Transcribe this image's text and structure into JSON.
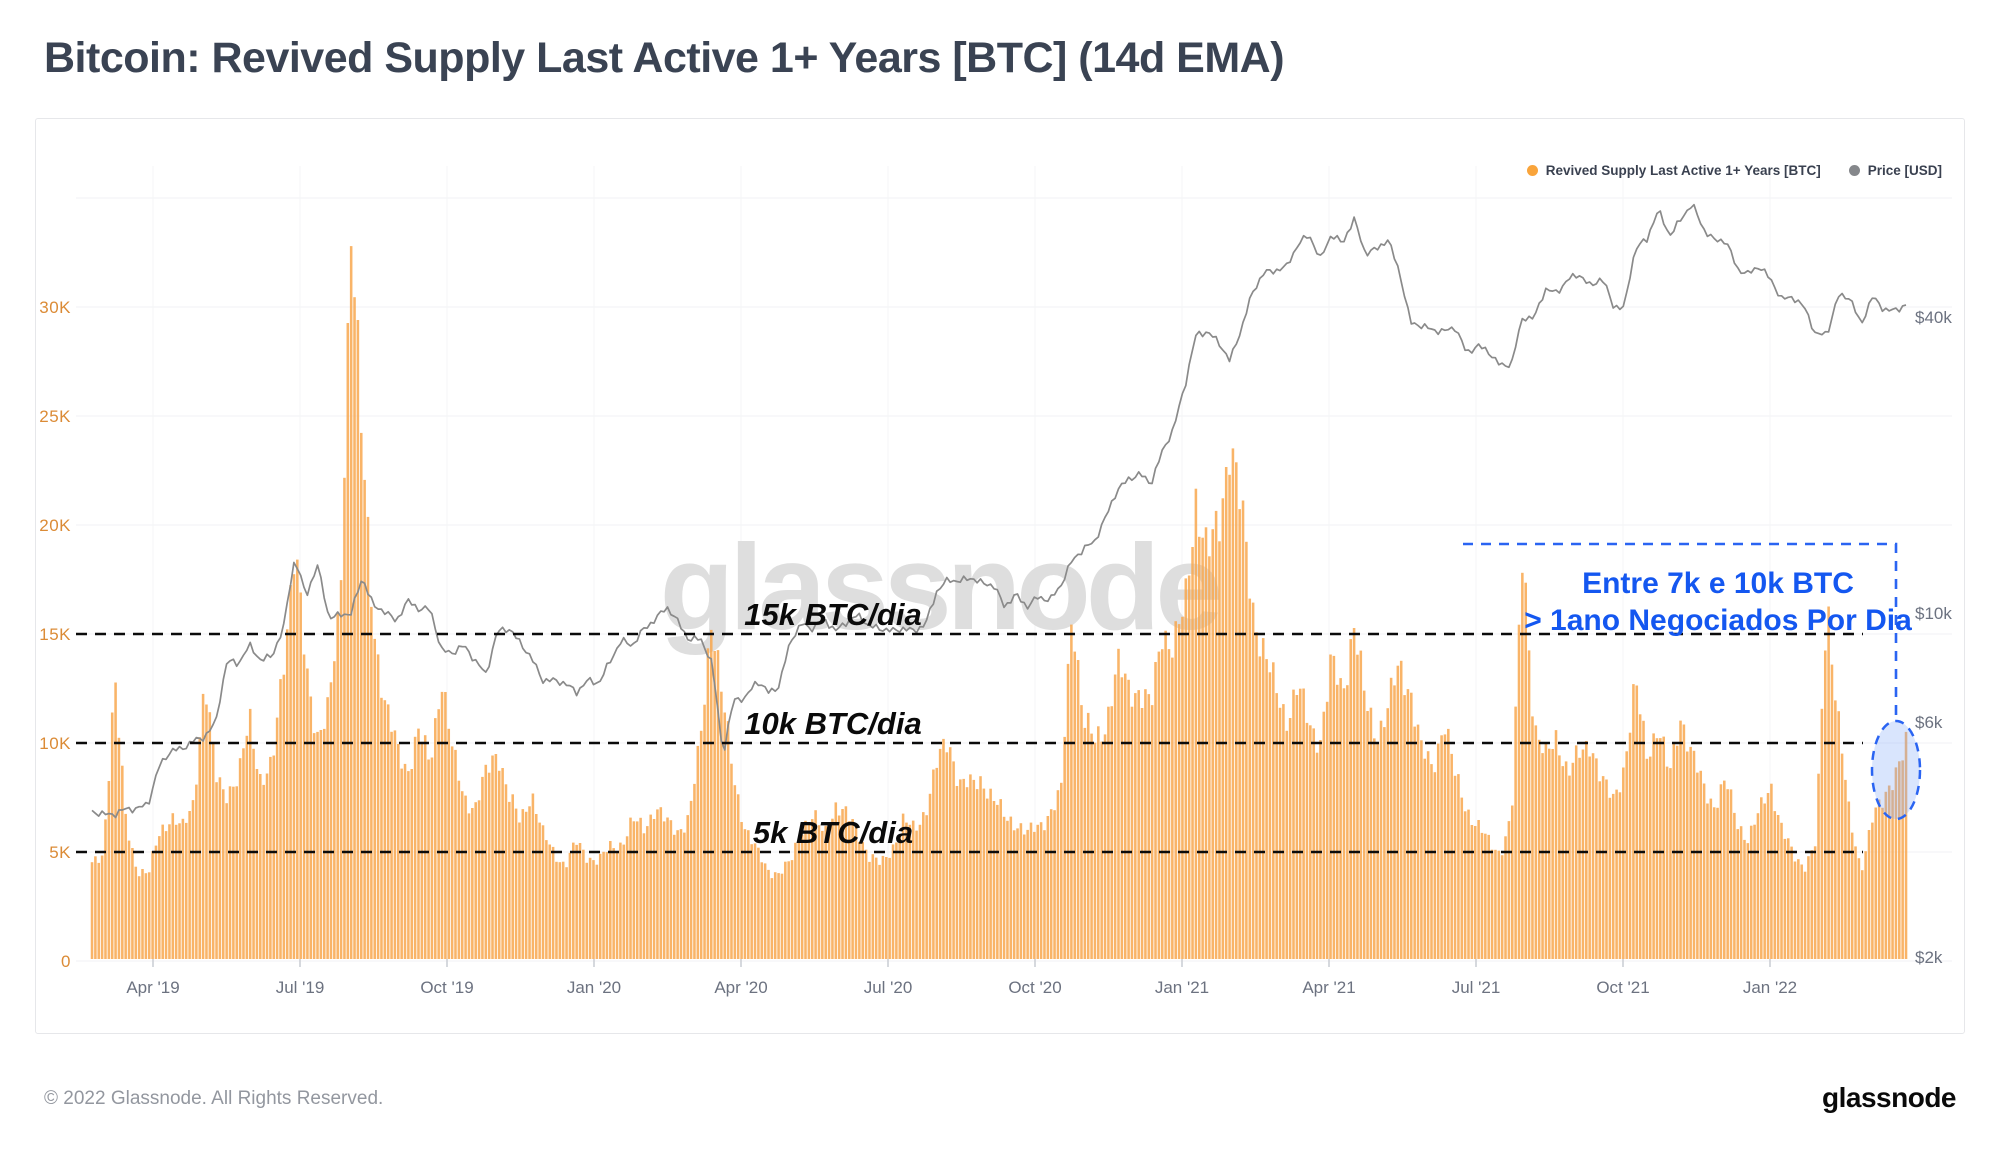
{
  "page": {
    "title": "Bitcoin: Revived Supply Last Active 1+ Years [BTC] (14d EMA)",
    "footer_copyright": "© 2022 Glassnode. All Rights Reserved.",
    "brand_logo": "glassnode",
    "watermark": "glassnode"
  },
  "legend": [
    {
      "label": "Revived Supply Last Active 1+ Years [BTC]",
      "color": "#F9A43B"
    },
    {
      "label": "Price [USD]",
      "color": "#85878B"
    }
  ],
  "axes": {
    "left_ticks": [
      {
        "label": "0",
        "v": 0
      },
      {
        "label": "5K",
        "v": 5
      },
      {
        "label": "10K",
        "v": 10
      },
      {
        "label": "15K",
        "v": 15
      },
      {
        "label": "20K",
        "v": 20
      },
      {
        "label": "25K",
        "v": 25
      },
      {
        "label": "30K",
        "v": 30
      }
    ],
    "right_ticks": [
      {
        "label": "$2k",
        "v": 2
      },
      {
        "label": "$6k",
        "v": 6
      },
      {
        "label": "$10k",
        "v": 10
      },
      {
        "label": "$40k",
        "v": 40
      }
    ],
    "x_ticks": [
      "Apr '19",
      "Jul '19",
      "Oct '19",
      "Jan '20",
      "Apr '20",
      "Jul '20",
      "Oct '20",
      "Jan '21",
      "Apr '21",
      "Jul '21",
      "Oct '21",
      "Jan '22"
    ]
  },
  "annotations": {
    "thresholds": [
      {
        "label": "15k BTC/dia",
        "v": 15
      },
      {
        "label": "10k BTC/dia",
        "v": 10
      },
      {
        "label": "5k BTC/dia",
        "v": 5
      }
    ],
    "blue_note_line1": "Entre 7k e 10k BTC",
    "blue_note_line2": "> 1ano Negociados Por Dia",
    "blue_text_color": "#1457F0",
    "blue_line_color": "#2A64F2",
    "highlight_fill": "rgba(130,168,250,0.30)"
  },
  "chart_data": {
    "type": "bar+line",
    "title": "Bitcoin: Revived Supply Last Active 1+ Years [BTC] (14d EMA)",
    "x_start": "2019-02-20",
    "x_end": "2022-03-25",
    "sampling": "weekly",
    "left_axis": {
      "unit": "BTC",
      "scale": "linear",
      "range_k": [
        0,
        35
      ]
    },
    "right_axis": {
      "unit": "USD",
      "scale": "log",
      "range_usd": [
        2000,
        70000
      ]
    },
    "grid": true,
    "legend_position": "top-right",
    "series": [
      {
        "name": "Revived Supply Last Active 1+ Years [BTC]",
        "type": "bar",
        "color": "#F8A74D",
        "values_k_btc": [
          4.4,
          5.0,
          12.8,
          6.5,
          4.2,
          3.9,
          6.0,
          6.6,
          6.0,
          7.4,
          12.7,
          8.5,
          7.8,
          8.2,
          11.3,
          8.2,
          8.8,
          14.0,
          19.0,
          13.2,
          10.5,
          11.5,
          16.0,
          34.5,
          23.0,
          15.5,
          11.8,
          9.8,
          8.8,
          10.5,
          9.0,
          13.2,
          9.5,
          7.6,
          7.0,
          8.6,
          9.8,
          7.5,
          6.4,
          7.8,
          5.8,
          5.0,
          4.4,
          5.4,
          4.8,
          4.6,
          5.2,
          5.4,
          6.4,
          6.1,
          7.1,
          6.3,
          6.0,
          6.6,
          10.0,
          16.2,
          11.8,
          8.3,
          6.1,
          5.0,
          4.2,
          4.0,
          4.5,
          6.2,
          6.6,
          5.8,
          7.2,
          6.6,
          6.0,
          4.8,
          4.4,
          5.2,
          6.4,
          6.0,
          7.0,
          9.0,
          10.2,
          8.2,
          8.0,
          8.4,
          7.4,
          6.6,
          6.4,
          5.8,
          6.2,
          6.8,
          7.6,
          16.5,
          11.0,
          10.0,
          11.0,
          13.5,
          12.5,
          12.5,
          11.5,
          15.3,
          14.5,
          16.0,
          21.6,
          18.5,
          19.8,
          24.3,
          20.5,
          16.3,
          14.3,
          12.4,
          11.2,
          12.6,
          10.8,
          10.2,
          13.6,
          12.3,
          15.6,
          11.8,
          10.4,
          11.6,
          13.4,
          12.6,
          9.6,
          8.8,
          11.2,
          8.4,
          7.0,
          6.2,
          5.4,
          5.0,
          6.6,
          19.2,
          10.8,
          9.2,
          10.4,
          8.6,
          9.4,
          10.2,
          8.2,
          7.4,
          9.0,
          12.6,
          9.6,
          10.8,
          8.4,
          11.4,
          9.4,
          8.0,
          7.2,
          8.2,
          6.4,
          5.6,
          6.8,
          8.2,
          6.0,
          4.8,
          4.4,
          5.4,
          16.5,
          11.3,
          6.4,
          4.2,
          6.6,
          7.2,
          8.8,
          9.9
        ]
      },
      {
        "name": "Price [USD]",
        "type": "line",
        "color": "#8A8A8A",
        "values_k_usd": [
          3.95,
          3.9,
          3.9,
          4.0,
          4.0,
          4.1,
          4.9,
          5.25,
          5.3,
          5.5,
          5.6,
          6.0,
          8.0,
          7.9,
          8.6,
          8.0,
          8.2,
          9.3,
          12.9,
          10.8,
          12.5,
          9.8,
          9.9,
          10.0,
          11.8,
          10.3,
          10.1,
          9.6,
          10.6,
          10.2,
          10.2,
          8.4,
          8.3,
          8.6,
          8.0,
          7.5,
          9.2,
          9.3,
          8.7,
          8.1,
          7.3,
          7.3,
          7.2,
          6.9,
          7.3,
          7.2,
          8.0,
          8.8,
          8.6,
          9.3,
          9.7,
          10.3,
          9.6,
          8.8,
          8.9,
          7.9,
          5.1,
          6.7,
          6.7,
          7.3,
          6.9,
          7.1,
          8.8,
          9.5,
          9.3,
          9.7,
          9.2,
          9.6,
          9.9,
          9.4,
          9.3,
          9.2,
          9.3,
          9.2,
          9.5,
          11.1,
          11.7,
          11.6,
          11.8,
          11.5,
          11.4,
          10.3,
          10.9,
          10.3,
          10.8,
          10.6,
          11.4,
          12.8,
          13.5,
          14.0,
          15.7,
          17.8,
          18.7,
          19.2,
          18.3,
          21.3,
          23.7,
          28.9,
          36.8,
          37.3,
          35.5,
          32.5,
          37.7,
          44.8,
          49.2,
          49.7,
          50.5,
          55.9,
          58.9,
          52.3,
          58.8,
          56.4,
          63.2,
          53.8,
          54.9,
          57.4,
          49.7,
          38.9,
          38.4,
          37.6,
          37.4,
          38.1,
          33.7,
          35.0,
          33.9,
          31.8,
          32.1,
          40.0,
          39.7,
          45.6,
          44.7,
          47.7,
          48.8,
          46.1,
          48.1,
          42.2,
          41.6,
          55.3,
          57.4,
          66.0,
          58.5,
          62.9,
          68.0,
          60.4,
          57.2,
          57.2,
          50.1,
          48.9,
          50.8,
          47.5,
          43.4,
          43.9,
          41.7,
          36.8,
          36.9,
          44.1,
          43.9,
          38.4,
          43.9,
          41.5,
          41.1,
          42.4
        ]
      }
    ]
  }
}
